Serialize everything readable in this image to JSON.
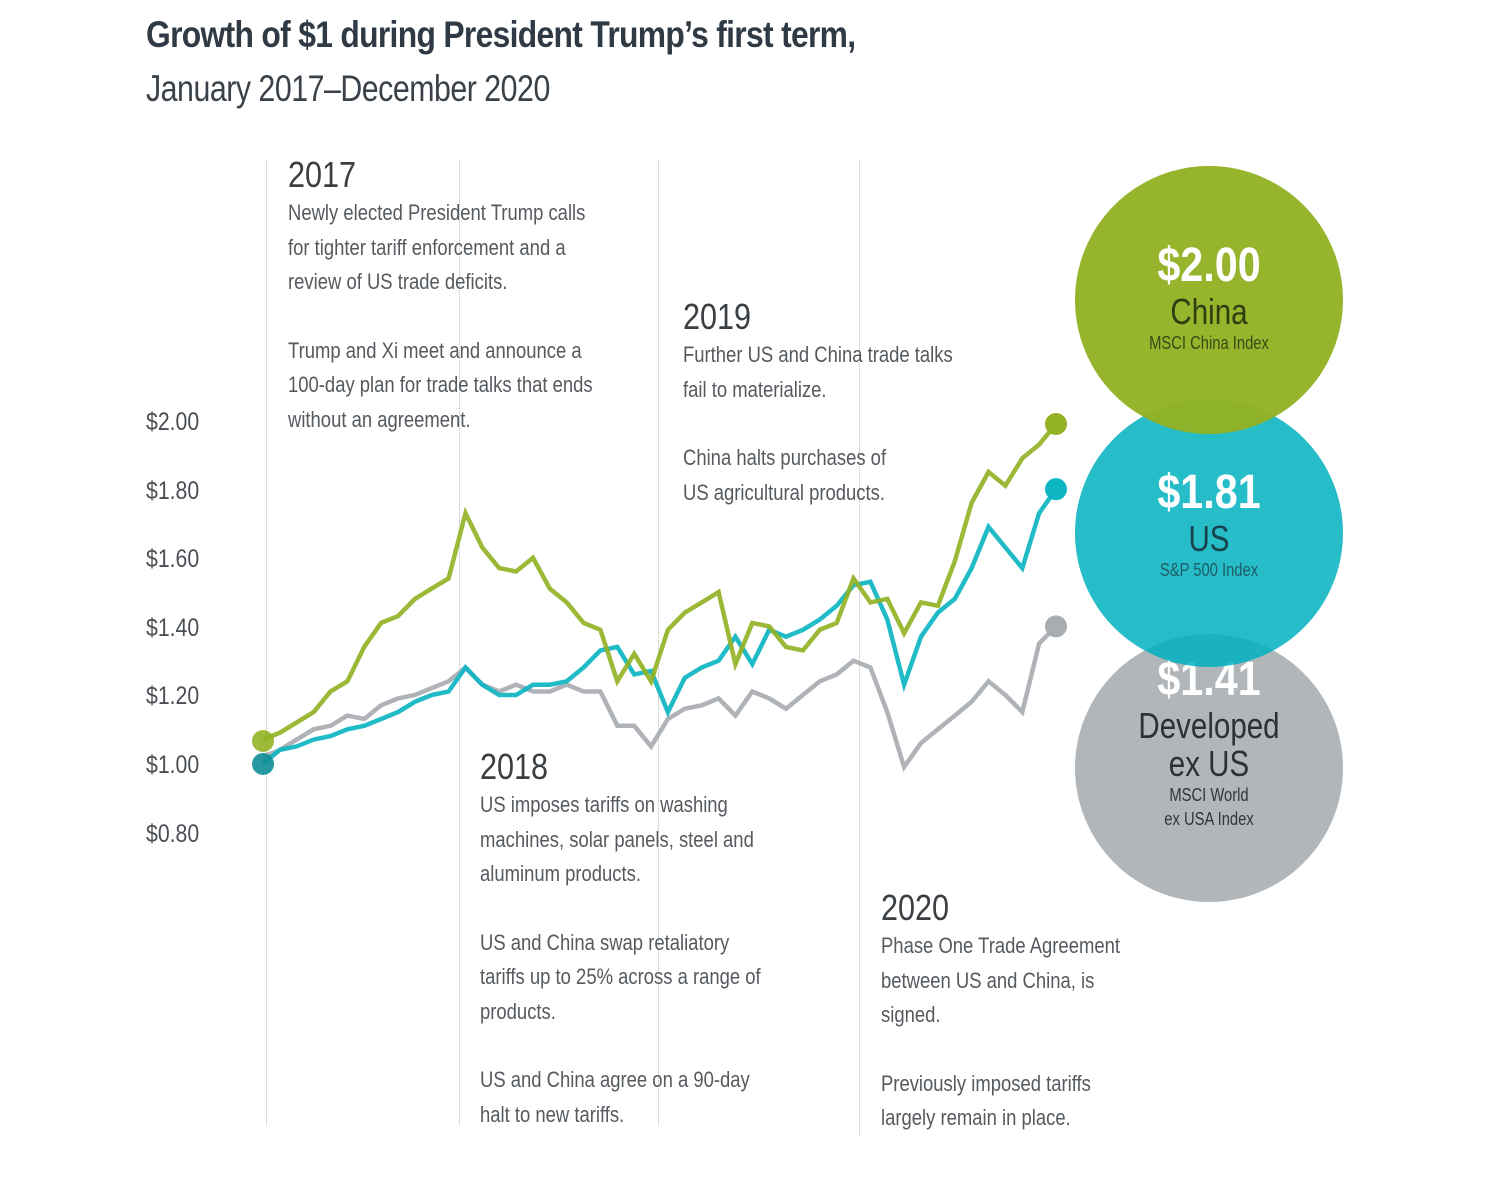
{
  "header": {
    "title": "Growth of $1 during President Trump’s first term,",
    "subtitle": "January 2017–December 2020"
  },
  "colors": {
    "china": "#93b225",
    "us": "#0eb5c3",
    "developed": "#a8adb2",
    "text": "#3a3f44"
  },
  "annotations": [
    {
      "year": "2017",
      "paragraphs": [
        [
          "Newly elected President Trump calls",
          "for tighter tariff enforcement and a",
          "review of US trade deficits."
        ],
        [
          "Trump and Xi meet and announce a",
          "100-day plan for trade talks that ends",
          "without an agreement."
        ]
      ]
    },
    {
      "year": "2018",
      "paragraphs": [
        [
          "US imposes tariffs on washing",
          "machines, solar panels, steel and",
          "aluminum products."
        ],
        [
          "US and China swap retaliatory",
          "tariffs up to 25% across a range of",
          "products."
        ],
        [
          "US and China agree on a 90-day",
          "halt to new tariffs."
        ]
      ]
    },
    {
      "year": "2019",
      "paragraphs": [
        [
          "Further US and China trade talks",
          "fail to materialize."
        ],
        [
          "China halts purchases of",
          "US agricultural products."
        ]
      ]
    },
    {
      "year": "2020",
      "paragraphs": [
        [
          "Phase One Trade Agreement",
          "between US and China, is",
          "signed."
        ],
        [
          "Previously imposed tariffs",
          "largely remain in place."
        ]
      ]
    }
  ],
  "bubbles": [
    {
      "value": "$2.00",
      "name": "China",
      "index": "MSCI China Index"
    },
    {
      "value": "$1.81",
      "name": "US",
      "index": "S&P 500 Index"
    },
    {
      "value": "$1.41",
      "name": "Developed ex US",
      "name_lines": [
        "Developed",
        "ex US"
      ],
      "index_lines": [
        "MSCI World",
        "ex USA Index"
      ]
    }
  ],
  "chart_data": {
    "type": "line",
    "title": "Growth of $1 during President Trump’s first term, January 2017–December 2020",
    "xlabel": "",
    "ylabel": "",
    "x_range": [
      "2017-01",
      "2020-12"
    ],
    "x_year_markers": [
      "2017",
      "2018",
      "2019",
      "2020"
    ],
    "yticks": [
      "$2.00",
      "$1.80",
      "$1.60",
      "$1.40",
      "$1.20",
      "$1.00",
      "$0.80"
    ],
    "ytick_values": [
      2.0,
      1.8,
      1.6,
      1.4,
      1.2,
      1.0,
      0.8
    ],
    "ylim": [
      0.8,
      2.0
    ],
    "grid": false,
    "legend": "right (labeled circles)",
    "series": [
      {
        "name": "China (MSCI China Index)",
        "key": "china",
        "end_label": "$2.00",
        "values": [
          1.08,
          1.1,
          1.13,
          1.16,
          1.22,
          1.25,
          1.35,
          1.42,
          1.44,
          1.49,
          1.52,
          1.55,
          1.74,
          1.64,
          1.58,
          1.57,
          1.61,
          1.52,
          1.48,
          1.42,
          1.4,
          1.25,
          1.33,
          1.25,
          1.4,
          1.45,
          1.48,
          1.51,
          1.3,
          1.42,
          1.41,
          1.35,
          1.34,
          1.4,
          1.42,
          1.55,
          1.48,
          1.49,
          1.39,
          1.48,
          1.47,
          1.6,
          1.77,
          1.86,
          1.82,
          1.9,
          1.94,
          2.0
        ]
      },
      {
        "name": "US (S&P 500 Index)",
        "key": "us",
        "end_label": "$1.81",
        "values": [
          1.01,
          1.05,
          1.06,
          1.08,
          1.09,
          1.11,
          1.12,
          1.14,
          1.16,
          1.19,
          1.21,
          1.22,
          1.29,
          1.24,
          1.21,
          1.21,
          1.24,
          1.24,
          1.25,
          1.29,
          1.34,
          1.35,
          1.27,
          1.28,
          1.16,
          1.26,
          1.29,
          1.31,
          1.38,
          1.3,
          1.4,
          1.38,
          1.4,
          1.43,
          1.47,
          1.53,
          1.54,
          1.43,
          1.24,
          1.38,
          1.45,
          1.49,
          1.58,
          1.7,
          1.64,
          1.58,
          1.74,
          1.81
        ]
      },
      {
        "name": "Developed ex US (MSCI World ex USA Index)",
        "key": "developed",
        "end_label": "$1.41",
        "values": [
          1.03,
          1.05,
          1.08,
          1.11,
          1.12,
          1.15,
          1.14,
          1.18,
          1.2,
          1.21,
          1.23,
          1.25,
          1.29,
          1.24,
          1.22,
          1.24,
          1.22,
          1.22,
          1.24,
          1.22,
          1.22,
          1.12,
          1.12,
          1.06,
          1.14,
          1.17,
          1.18,
          1.2,
          1.15,
          1.22,
          1.2,
          1.17,
          1.21,
          1.25,
          1.27,
          1.31,
          1.29,
          1.16,
          1.0,
          1.07,
          1.11,
          1.15,
          1.19,
          1.25,
          1.21,
          1.16,
          1.36,
          1.41
        ]
      }
    ]
  }
}
